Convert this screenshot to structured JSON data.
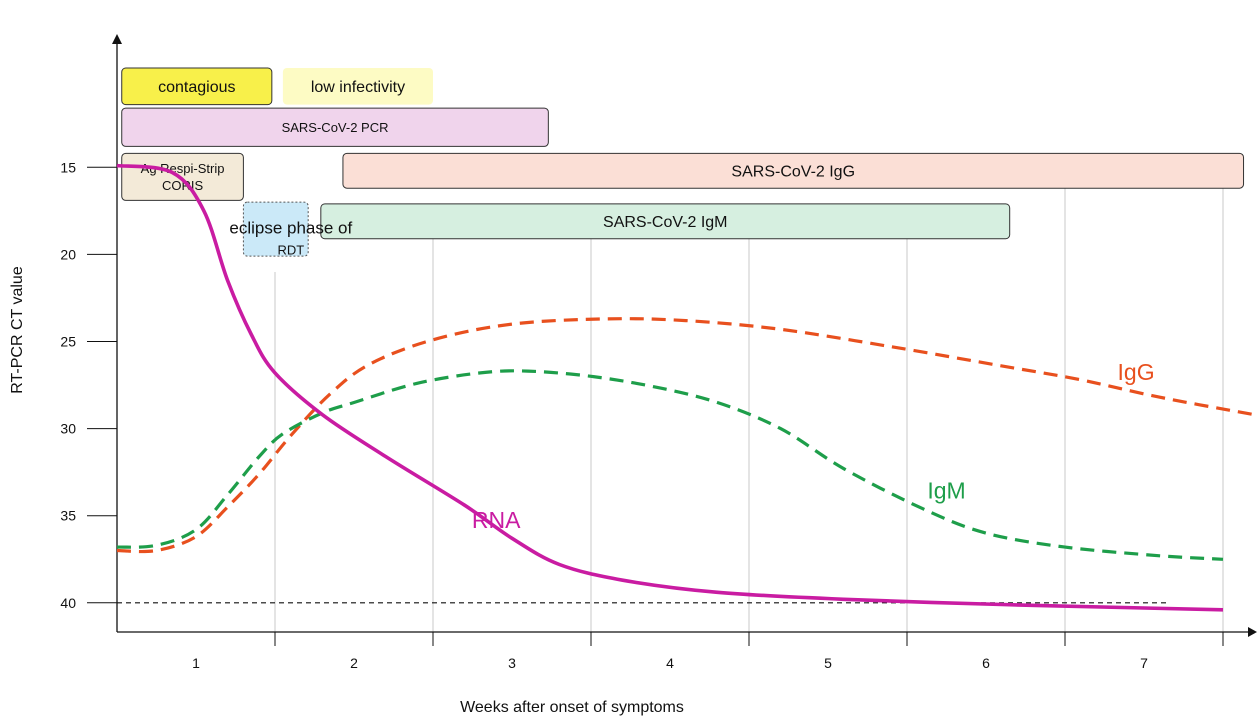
{
  "chart_data": {
    "type": "line",
    "xlabel": "Weeks after onset of symptoms",
    "ylabel": "RT-PCR CT value",
    "x_tick_labels": [
      "1",
      "2",
      "3",
      "4",
      "5",
      "6",
      "7"
    ],
    "y_ticks": [
      15,
      20,
      25,
      30,
      35,
      40
    ],
    "ylim": [
      10,
      41
    ],
    "y_inverted": true,
    "xlim": [
      0,
      7.25
    ],
    "threshold_line": 40,
    "series": [
      {
        "name": "RNA",
        "style": "solid",
        "color": "#c91ca2",
        "points": [
          [
            0,
            14.9
          ],
          [
            0.35,
            15.3
          ],
          [
            0.55,
            17.5
          ],
          [
            0.7,
            21.5
          ],
          [
            0.85,
            24.6
          ],
          [
            1.0,
            26.8
          ],
          [
            1.3,
            29.2
          ],
          [
            1.7,
            31.6
          ],
          [
            2.2,
            34.4
          ],
          [
            2.5,
            36.3
          ],
          [
            2.8,
            37.8
          ],
          [
            3.2,
            38.7
          ],
          [
            3.8,
            39.4
          ],
          [
            4.6,
            39.8
          ],
          [
            5.6,
            40.1
          ],
          [
            6.5,
            40.3
          ],
          [
            7.0,
            40.4
          ]
        ]
      },
      {
        "name": "IgG",
        "style": "dashed",
        "color": "#e8501e",
        "points": [
          [
            0,
            37.0
          ],
          [
            0.25,
            37.0
          ],
          [
            0.5,
            36.2
          ],
          [
            0.7,
            34.5
          ],
          [
            0.9,
            32.6
          ],
          [
            1.1,
            30.4
          ],
          [
            1.35,
            28.0
          ],
          [
            1.6,
            26.3
          ],
          [
            2.0,
            24.9
          ],
          [
            2.5,
            24.0
          ],
          [
            3.1,
            23.7
          ],
          [
            3.6,
            23.8
          ],
          [
            4.2,
            24.3
          ],
          [
            4.9,
            25.3
          ],
          [
            5.6,
            26.4
          ],
          [
            6.1,
            27.2
          ],
          [
            6.6,
            28.2
          ],
          [
            7.2,
            29.2
          ]
        ]
      },
      {
        "name": "IgM",
        "style": "dashed",
        "color": "#1e9e4a",
        "points": [
          [
            0,
            36.8
          ],
          [
            0.25,
            36.7
          ],
          [
            0.5,
            35.8
          ],
          [
            0.7,
            33.8
          ],
          [
            0.9,
            31.6
          ],
          [
            1.05,
            30.3
          ],
          [
            1.3,
            29.1
          ],
          [
            1.5,
            28.5
          ],
          [
            1.9,
            27.4
          ],
          [
            2.3,
            26.8
          ],
          [
            2.6,
            26.7
          ],
          [
            3.0,
            27.0
          ],
          [
            3.4,
            27.6
          ],
          [
            3.8,
            28.5
          ],
          [
            4.2,
            30.0
          ],
          [
            4.6,
            32.3
          ],
          [
            5.1,
            34.6
          ],
          [
            5.5,
            36.0
          ],
          [
            6.0,
            36.8
          ],
          [
            6.6,
            37.3
          ],
          [
            7.0,
            37.5
          ]
        ]
      }
    ],
    "series_labels": [
      {
        "text": "RNA",
        "color": "#c91ca2",
        "x": 2.4,
        "y": 35.7,
        "size": 23
      },
      {
        "text": "IgM",
        "color": "#1e9e4a",
        "x": 5.25,
        "y": 34.0,
        "size": 23
      },
      {
        "text": "IgG",
        "color": "#e8501e",
        "x": 6.45,
        "y": 27.2,
        "size": 23
      }
    ],
    "annotations": [
      {
        "text": "eclipse phase of",
        "x": 1.1,
        "y": 18.8,
        "size": 17,
        "color": "#111111"
      },
      {
        "text": "RDT",
        "x": 1.1,
        "y": 20.0,
        "size": 13,
        "color": "#111111"
      }
    ],
    "bands": [
      {
        "label": "contagious",
        "lines": [
          "contagious"
        ],
        "start": 0.03,
        "end": 0.98,
        "y_top": 9.3,
        "y_bottom": 11.4,
        "fill": "#f8f04a",
        "stroke": "#333333",
        "dashed": false,
        "text_size": 16
      },
      {
        "label": "low infectivity",
        "lines": [
          "low infectivity"
        ],
        "start": 1.05,
        "end": 2.0,
        "y_top": 9.3,
        "y_bottom": 11.4,
        "fill": "#fdfbc4",
        "stroke": "none",
        "dashed": false,
        "text_size": 16
      },
      {
        "label": "SARS-CoV-2 PCR",
        "lines": [
          "SARS-CoV-2 PCR"
        ],
        "start": 0.03,
        "end": 2.73,
        "y_top": 11.6,
        "y_bottom": 13.8,
        "fill": "#f0d4ec",
        "stroke": "#333333",
        "dashed": false,
        "text_size": 13
      },
      {
        "label": "Ag Respi-Strip CORIS",
        "lines": [
          "Ag Respi-Strip",
          "CORIS"
        ],
        "start": 0.03,
        "end": 0.8,
        "y_top": 14.2,
        "y_bottom": 16.9,
        "fill": "#f3ead8",
        "stroke": "#333333",
        "dashed": false,
        "text_size": 13
      },
      {
        "label": "SARS-CoV-2 IgG",
        "lines": [
          "SARS-CoV-2 IgG"
        ],
        "start": 1.43,
        "end": 7.13,
        "y_top": 14.2,
        "y_bottom": 16.2,
        "fill": "#fbdfd6",
        "stroke": "#333333",
        "dashed": false,
        "text_size": 16
      },
      {
        "label": "SARS-CoV-2 IgM",
        "lines": [
          "SARS-CoV-2 IgM"
        ],
        "start": 1.29,
        "end": 5.65,
        "y_top": 17.1,
        "y_bottom": 19.1,
        "fill": "#d6efe0",
        "stroke": "#333333",
        "dashed": false,
        "text_size": 16
      },
      {
        "label": "",
        "lines": [],
        "start": 0.8,
        "end": 1.21,
        "y_top": 17.0,
        "y_bottom": 20.1,
        "fill": "#cbe9f8",
        "stroke": "#555555",
        "dashed": true,
        "text_size": 13
      }
    ]
  }
}
